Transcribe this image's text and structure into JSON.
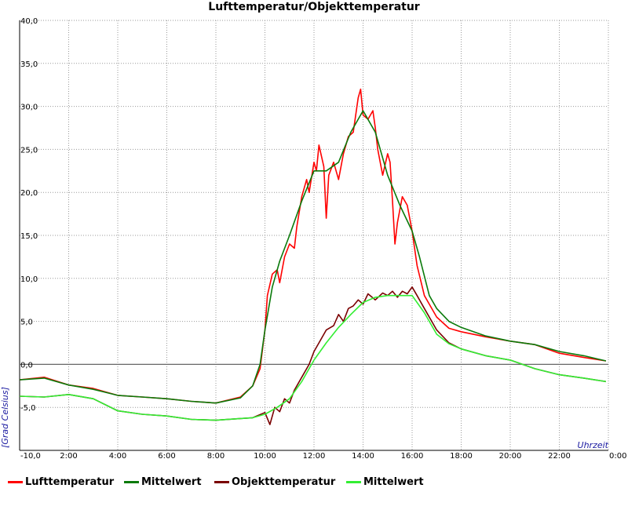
{
  "chart_data": {
    "type": "line",
    "title": "Lufttemperatur/Objekttemperatur",
    "xlabel": "Uhrzeit",
    "ylabel": "[Grad Celsius]",
    "xlim": [
      0,
      24
    ],
    "ylim": [
      -10,
      40
    ],
    "y_ticks": [
      {
        "value": 40,
        "label": "40,0"
      },
      {
        "value": 35,
        "label": "35,0"
      },
      {
        "value": 30,
        "label": "30,0"
      },
      {
        "value": 25,
        "label": "25,0"
      },
      {
        "value": 20,
        "label": "20,0"
      },
      {
        "value": 15,
        "label": "15,0"
      },
      {
        "value": 10,
        "label": "10,0"
      },
      {
        "value": 5,
        "label": "5,0"
      },
      {
        "value": 0,
        "label": "0,0"
      },
      {
        "value": -5,
        "label": "-5,0"
      },
      {
        "value": -10,
        "label": "-10,0"
      }
    ],
    "x_ticks": [
      {
        "value": 2,
        "label": "2:00"
      },
      {
        "value": 4,
        "label": "4:00"
      },
      {
        "value": 6,
        "label": "6:00"
      },
      {
        "value": 8,
        "label": "8:00"
      },
      {
        "value": 10,
        "label": "10:00"
      },
      {
        "value": 12,
        "label": "12:00"
      },
      {
        "value": 14,
        "label": "14:00"
      },
      {
        "value": 16,
        "label": "16:00"
      },
      {
        "value": 18,
        "label": "18:00"
      },
      {
        "value": 20,
        "label": "20:00"
      },
      {
        "value": 22,
        "label": "22:00"
      },
      {
        "value": 24,
        "label": "0:00"
      }
    ],
    "grid": true,
    "zero_line": 0,
    "legend_position": "bottom",
    "series": [
      {
        "name": "Lufttemperatur",
        "color": "#ff0000",
        "width": 1.6,
        "points": [
          [
            0,
            -1.8
          ],
          [
            1,
            -1.5
          ],
          [
            2,
            -2.4
          ],
          [
            3,
            -2.8
          ],
          [
            4,
            -3.6
          ],
          [
            5,
            -3.8
          ],
          [
            6,
            -4.0
          ],
          [
            7,
            -4.3
          ],
          [
            8,
            -4.5
          ],
          [
            9,
            -3.8
          ],
          [
            9.5,
            -2.5
          ],
          [
            9.8,
            -0.5
          ],
          [
            10,
            4.0
          ],
          [
            10.1,
            8.0
          ],
          [
            10.3,
            10.5
          ],
          [
            10.5,
            11.0
          ],
          [
            10.6,
            9.5
          ],
          [
            10.8,
            12.5
          ],
          [
            11,
            14.0
          ],
          [
            11.2,
            13.5
          ],
          [
            11.3,
            16.0
          ],
          [
            11.5,
            19.5
          ],
          [
            11.7,
            21.5
          ],
          [
            11.8,
            20.0
          ],
          [
            12,
            23.5
          ],
          [
            12.1,
            22.5
          ],
          [
            12.2,
            25.5
          ],
          [
            12.4,
            23.0
          ],
          [
            12.5,
            17.0
          ],
          [
            12.6,
            22.0
          ],
          [
            12.8,
            23.5
          ],
          [
            13,
            21.5
          ],
          [
            13.2,
            24.5
          ],
          [
            13.4,
            26.5
          ],
          [
            13.6,
            27.0
          ],
          [
            13.8,
            31.0
          ],
          [
            13.9,
            32.0
          ],
          [
            14,
            29.0
          ],
          [
            14.2,
            28.5
          ],
          [
            14.4,
            29.5
          ],
          [
            14.5,
            27.5
          ],
          [
            14.6,
            25.0
          ],
          [
            14.8,
            22.0
          ],
          [
            15,
            24.5
          ],
          [
            15.1,
            23.5
          ],
          [
            15.2,
            19.0
          ],
          [
            15.3,
            14.0
          ],
          [
            15.4,
            16.5
          ],
          [
            15.6,
            19.5
          ],
          [
            15.8,
            18.5
          ],
          [
            16,
            15.5
          ],
          [
            16.2,
            11.5
          ],
          [
            16.5,
            8.0
          ],
          [
            17,
            5.5
          ],
          [
            17.5,
            4.2
          ],
          [
            18,
            3.8
          ],
          [
            19,
            3.2
          ],
          [
            20,
            2.7
          ],
          [
            21,
            2.3
          ],
          [
            22,
            1.3
          ],
          [
            23,
            0.8
          ],
          [
            23.9,
            0.4
          ]
        ]
      },
      {
        "name": "Mittelwert",
        "color": "#0a7a0a",
        "width": 1.6,
        "points": [
          [
            0,
            -1.8
          ],
          [
            1,
            -1.6
          ],
          [
            2,
            -2.4
          ],
          [
            3,
            -2.9
          ],
          [
            4,
            -3.6
          ],
          [
            5,
            -3.8
          ],
          [
            6,
            -4.0
          ],
          [
            7,
            -4.3
          ],
          [
            8,
            -4.5
          ],
          [
            9,
            -3.9
          ],
          [
            9.5,
            -2.5
          ],
          [
            9.8,
            0.0
          ],
          [
            10,
            4.0
          ],
          [
            10.3,
            9.0
          ],
          [
            10.6,
            12.0
          ],
          [
            11,
            15.0
          ],
          [
            11.5,
            19.0
          ],
          [
            12,
            22.5
          ],
          [
            12.5,
            22.5
          ],
          [
            13,
            23.5
          ],
          [
            13.5,
            27.0
          ],
          [
            14,
            29.5
          ],
          [
            14.5,
            27.0
          ],
          [
            15,
            22.0
          ],
          [
            15.5,
            18.5
          ],
          [
            16,
            15.5
          ],
          [
            16.3,
            12.5
          ],
          [
            16.7,
            8.0
          ],
          [
            17,
            6.5
          ],
          [
            17.5,
            5.0
          ],
          [
            18,
            4.3
          ],
          [
            19,
            3.3
          ],
          [
            20,
            2.7
          ],
          [
            21,
            2.3
          ],
          [
            22,
            1.5
          ],
          [
            23,
            1.0
          ],
          [
            23.9,
            0.4
          ]
        ]
      },
      {
        "name": "Objekttemperatur",
        "color": "#7a0000",
        "width": 1.6,
        "points": [
          [
            0,
            -3.7
          ],
          [
            1,
            -3.8
          ],
          [
            2,
            -3.5
          ],
          [
            3,
            -4.0
          ],
          [
            4,
            -5.4
          ],
          [
            5,
            -5.8
          ],
          [
            6,
            -6.0
          ],
          [
            7,
            -6.4
          ],
          [
            8,
            -6.5
          ],
          [
            9,
            -6.3
          ],
          [
            9.5,
            -6.2
          ],
          [
            10,
            -5.6
          ],
          [
            10.2,
            -7.0
          ],
          [
            10.4,
            -5.0
          ],
          [
            10.6,
            -5.5
          ],
          [
            10.8,
            -4.0
          ],
          [
            11,
            -4.5
          ],
          [
            11.2,
            -3.0
          ],
          [
            11.5,
            -1.5
          ],
          [
            11.8,
            0.0
          ],
          [
            12,
            1.5
          ],
          [
            12.2,
            2.5
          ],
          [
            12.5,
            4.0
          ],
          [
            12.8,
            4.5
          ],
          [
            13,
            5.8
          ],
          [
            13.2,
            5.0
          ],
          [
            13.4,
            6.5
          ],
          [
            13.6,
            6.8
          ],
          [
            13.8,
            7.5
          ],
          [
            14,
            7.0
          ],
          [
            14.2,
            8.2
          ],
          [
            14.5,
            7.5
          ],
          [
            14.8,
            8.3
          ],
          [
            15,
            8.0
          ],
          [
            15.2,
            8.5
          ],
          [
            15.4,
            7.8
          ],
          [
            15.6,
            8.5
          ],
          [
            15.8,
            8.2
          ],
          [
            16,
            9.0
          ],
          [
            16.2,
            8.0
          ],
          [
            16.5,
            6.5
          ],
          [
            17,
            4.0
          ],
          [
            17.5,
            2.5
          ],
          [
            18,
            1.8
          ],
          [
            19,
            1.0
          ],
          [
            20,
            0.5
          ],
          [
            21,
            -0.5
          ],
          [
            22,
            -1.2
          ],
          [
            23,
            -1.6
          ],
          [
            23.9,
            -2.0
          ]
        ]
      },
      {
        "name": "Mittelwert",
        "color": "#33ee33",
        "width": 1.6,
        "points": [
          [
            0,
            -3.7
          ],
          [
            1,
            -3.8
          ],
          [
            2,
            -3.5
          ],
          [
            3,
            -4.0
          ],
          [
            4,
            -5.4
          ],
          [
            5,
            -5.8
          ],
          [
            6,
            -6.0
          ],
          [
            7,
            -6.4
          ],
          [
            8,
            -6.5
          ],
          [
            9,
            -6.3
          ],
          [
            9.5,
            -6.2
          ],
          [
            10,
            -5.8
          ],
          [
            10.5,
            -5.0
          ],
          [
            11,
            -4.0
          ],
          [
            11.5,
            -2.0
          ],
          [
            12,
            0.5
          ],
          [
            12.5,
            2.5
          ],
          [
            13,
            4.3
          ],
          [
            13.5,
            5.8
          ],
          [
            14,
            7.2
          ],
          [
            14.5,
            7.8
          ],
          [
            15,
            8.0
          ],
          [
            15.5,
            8.0
          ],
          [
            16,
            8.0
          ],
          [
            16.5,
            6.0
          ],
          [
            17,
            3.5
          ],
          [
            17.5,
            2.4
          ],
          [
            18,
            1.8
          ],
          [
            19,
            1.0
          ],
          [
            20,
            0.5
          ],
          [
            21,
            -0.5
          ],
          [
            22,
            -1.2
          ],
          [
            23,
            -1.6
          ],
          [
            23.9,
            -2.0
          ]
        ]
      }
    ]
  }
}
